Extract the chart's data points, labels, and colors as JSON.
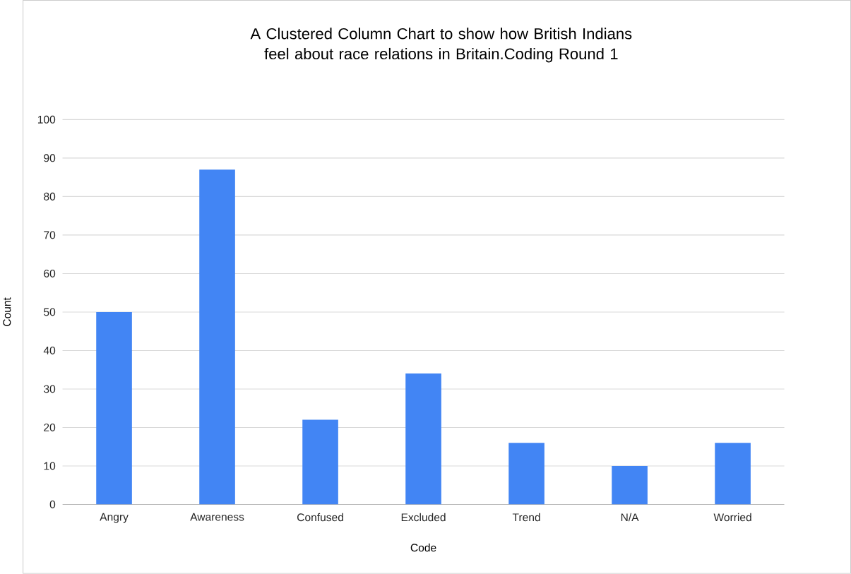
{
  "chart_data": {
    "type": "bar",
    "title": "A Clustered Column Chart to show how British Indians feel about race relations in Britain.Coding Round 1",
    "xlabel": "Code",
    "ylabel": "Count",
    "categories": [
      "Angry",
      "Awareness",
      "Confused",
      "Excluded",
      "Trend",
      "N/A",
      "Worried"
    ],
    "values": [
      50,
      87,
      22,
      34,
      16,
      10,
      16
    ],
    "color": "#4285f4",
    "ylim": [
      0,
      100
    ],
    "yticks": [
      0,
      10,
      20,
      30,
      40,
      50,
      60,
      70,
      80,
      90,
      100
    ],
    "grid": "y"
  }
}
